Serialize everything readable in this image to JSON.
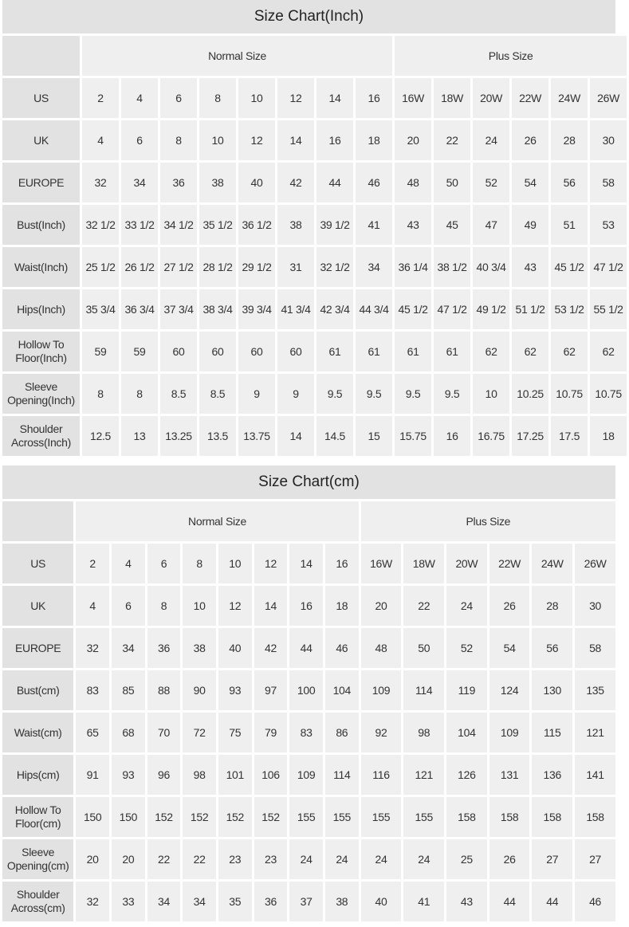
{
  "tables": [
    {
      "title": "Size Chart(Inch)",
      "corner": "",
      "groups": {
        "normal": "Normal Size",
        "plus": "Plus Size"
      },
      "rows": [
        {
          "label": "US",
          "values": [
            "2",
            "4",
            "6",
            "8",
            "10",
            "12",
            "14",
            "16",
            "16W",
            "18W",
            "20W",
            "22W",
            "24W",
            "26W"
          ]
        },
        {
          "label": "UK",
          "values": [
            "4",
            "6",
            "8",
            "10",
            "12",
            "14",
            "16",
            "18",
            "20",
            "22",
            "24",
            "26",
            "28",
            "30"
          ]
        },
        {
          "label": "EUROPE",
          "values": [
            "32",
            "34",
            "36",
            "38",
            "40",
            "42",
            "44",
            "46",
            "48",
            "50",
            "52",
            "54",
            "56",
            "58"
          ]
        },
        {
          "label": "Bust(Inch)",
          "values": [
            "32 1/2",
            "33 1/2",
            "34 1/2",
            "35 1/2",
            "36 1/2",
            "38",
            "39 1/2",
            "41",
            "43",
            "45",
            "47",
            "49",
            "51",
            "53"
          ]
        },
        {
          "label": "Waist(Inch)",
          "values": [
            "25 1/2",
            "26 1/2",
            "27 1/2",
            "28 1/2",
            "29 1/2",
            "31",
            "32 1/2",
            "34",
            "36 1/4",
            "38 1/2",
            "40 3/4",
            "43",
            "45 1/2",
            "47 1/2"
          ]
        },
        {
          "label": "Hips(Inch)",
          "values": [
            "35 3/4",
            "36 3/4",
            "37 3/4",
            "38 3/4",
            "39 3/4",
            "41 3/4",
            "42 3/4",
            "44 3/4",
            "45 1/2",
            "47 1/2",
            "49 1/2",
            "51 1/2",
            "53 1/2",
            "55 1/2"
          ]
        },
        {
          "label": "Hollow To Floor(Inch)",
          "values": [
            "59",
            "59",
            "60",
            "60",
            "60",
            "60",
            "61",
            "61",
            "61",
            "61",
            "62",
            "62",
            "62",
            "62"
          ]
        },
        {
          "label": "Sleeve Opening(Inch)",
          "values": [
            "8",
            "8",
            "8.5",
            "8.5",
            "9",
            "9",
            "9.5",
            "9.5",
            "9.5",
            "9.5",
            "10",
            "10.25",
            "10.75",
            "10.75"
          ]
        },
        {
          "label": "Shoulder Across(Inch)",
          "values": [
            "12.5",
            "13",
            "13.25",
            "13.5",
            "13.75",
            "14",
            "14.5",
            "15",
            "15.75",
            "16",
            "16.75",
            "17.25",
            "17.5",
            "18"
          ]
        }
      ]
    },
    {
      "title": "Size Chart(cm)",
      "corner": "",
      "groups": {
        "normal": "Normal Size",
        "plus": "Plus Size"
      },
      "rows": [
        {
          "label": "US",
          "values": [
            "2",
            "4",
            "6",
            "8",
            "10",
            "12",
            "14",
            "16",
            "16W",
            "18W",
            "20W",
            "22W",
            "24W",
            "26W"
          ]
        },
        {
          "label": "UK",
          "values": [
            "4",
            "6",
            "8",
            "10",
            "12",
            "14",
            "16",
            "18",
            "20",
            "22",
            "24",
            "26",
            "28",
            "30"
          ]
        },
        {
          "label": "EUROPE",
          "values": [
            "32",
            "34",
            "36",
            "38",
            "40",
            "42",
            "44",
            "46",
            "48",
            "50",
            "52",
            "54",
            "56",
            "58"
          ]
        },
        {
          "label": "Bust(cm)",
          "values": [
            "83",
            "85",
            "88",
            "90",
            "93",
            "97",
            "100",
            "104",
            "109",
            "114",
            "119",
            "124",
            "130",
            "135"
          ]
        },
        {
          "label": "Waist(cm)",
          "values": [
            "65",
            "68",
            "70",
            "72",
            "75",
            "79",
            "83",
            "86",
            "92",
            "98",
            "104",
            "109",
            "115",
            "121"
          ]
        },
        {
          "label": "Hips(cm)",
          "values": [
            "91",
            "93",
            "96",
            "98",
            "101",
            "106",
            "109",
            "114",
            "116",
            "121",
            "126",
            "131",
            "136",
            "141"
          ]
        },
        {
          "label": "Hollow To Floor(cm)",
          "values": [
            "150",
            "150",
            "152",
            "152",
            "152",
            "152",
            "155",
            "155",
            "155",
            "155",
            "158",
            "158",
            "158",
            "158"
          ]
        },
        {
          "label": "Sleeve Opening(cm)",
          "values": [
            "20",
            "20",
            "22",
            "22",
            "23",
            "23",
            "24",
            "24",
            "24",
            "24",
            "25",
            "26",
            "27",
            "27"
          ]
        },
        {
          "label": "Shoulder Across(cm)",
          "values": [
            "32",
            "33",
            "34",
            "34",
            "35",
            "36",
            "37",
            "38",
            "40",
            "41",
            "43",
            "44",
            "44",
            "46"
          ]
        }
      ]
    }
  ]
}
